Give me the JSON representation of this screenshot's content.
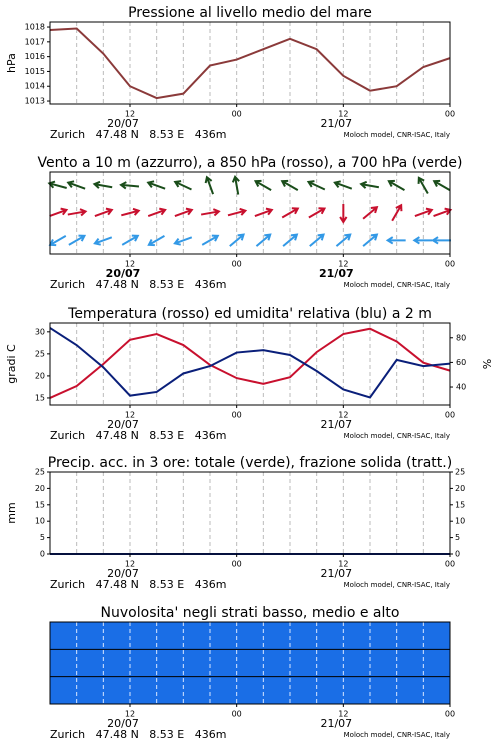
{
  "chart_data": [
    {
      "type": "line",
      "title": "Pressione al livello medio del mare",
      "ylabel": "hPa",
      "categories": [
        null,
        null,
        null,
        "12",
        null,
        null,
        null,
        "00",
        null,
        null,
        null,
        "12",
        null,
        null,
        null,
        "00"
      ],
      "date_labels": [
        null,
        null,
        null,
        "20/07",
        null,
        null,
        null,
        null,
        null,
        null,
        null,
        "21/07",
        null,
        null,
        null,
        null
      ],
      "location": "Zurich   47.48 N   8.53 E   436m",
      "credit": "Moloch model, CNR-ISAC, Italy",
      "ylim": [
        1012.8,
        1018.34
      ],
      "yticks": [
        1013,
        1014,
        1015,
        1016,
        1017,
        1018
      ],
      "grid": true,
      "series": [
        {
          "color": "#8b3a3a",
          "values": [
            1017.8,
            1017.9,
            1016.2,
            1014.0,
            1013.2,
            1013.5,
            1015.4,
            1015.8,
            1016.5,
            1017.2,
            1016.5,
            1014.7,
            1013.7,
            1014.0,
            1015.3,
            1015.9
          ]
        }
      ]
    },
    {
      "type": "quiver",
      "title": "Vento a 10 m (azzurro), a 850 hPa (rosso), a 700 hPa (verde)",
      "categories": [
        null,
        null,
        null,
        "12",
        null,
        null,
        null,
        "00",
        null,
        null,
        null,
        "12",
        null,
        null,
        null,
        "00"
      ],
      "date_labels": [
        null,
        null,
        null,
        "20/07",
        null,
        null,
        null,
        null,
        null,
        null,
        null,
        "21/07",
        null,
        null,
        null,
        null
      ],
      "date_bold": true,
      "location": "Zurich   47.48 N   8.53 E   436m",
      "credit": "Moloch model, CNR-ISAC, Italy",
      "grid": true,
      "series": [
        {
          "color": "#3399e6",
          "values": [
            210,
            30,
            200,
            30,
            210,
            200,
            30,
            40,
            40,
            40,
            40,
            40,
            40,
            180,
            180,
            180
          ]
        },
        {
          "color": "#c8102e",
          "values": [
            20,
            10,
            20,
            15,
            20,
            20,
            10,
            15,
            20,
            30,
            30,
            270,
            40,
            60,
            20,
            20
          ]
        },
        {
          "color": "#1a4d1a",
          "values": [
            165,
            160,
            170,
            175,
            160,
            155,
            110,
            100,
            150,
            150,
            155,
            160,
            170,
            150,
            120,
            150
          ]
        }
      ]
    },
    {
      "type": "line",
      "title": "Temperatura (rosso) ed umidita' relativa (blu) a 2 m",
      "ylabel": "gradi C",
      "y2label": "%",
      "categories": [
        null,
        null,
        null,
        "12",
        null,
        null,
        null,
        "00",
        null,
        null,
        null,
        "12",
        null,
        null,
        null,
        "00"
      ],
      "date_labels": [
        null,
        null,
        null,
        "20/07",
        null,
        null,
        null,
        null,
        null,
        null,
        null,
        "21/07",
        null,
        null,
        null,
        null
      ],
      "location": "Zurich   47.48 N   8.53 E   436m",
      "credit": "Moloch model, CNR-ISAC, Italy",
      "ylim": [
        13.4,
        32.0
      ],
      "yticks": [
        15,
        20,
        25,
        30
      ],
      "y2lim": [
        25.4,
        92
      ],
      "y2ticks": [
        40,
        60,
        80
      ],
      "grid": true,
      "series": [
        {
          "color": "#c8102e",
          "values": [
            15.0,
            17.7,
            22.7,
            28.2,
            29.5,
            27.0,
            22.5,
            19.5,
            18.2,
            19.7,
            25.4,
            29.5,
            30.7,
            27.8,
            23.0,
            21.2
          ]
        },
        {
          "color": "#0a1f7a",
          "axis": "y2",
          "values": [
            88,
            74,
            56,
            33,
            36,
            51,
            57,
            68,
            70,
            66,
            53,
            38,
            31.5,
            62,
            57,
            59
          ]
        }
      ]
    },
    {
      "type": "line",
      "title": "Precip. acc. in 3 ore: totale (verde), frazione solida (tratt.)",
      "ylabel": "mm",
      "categories": [
        null,
        null,
        null,
        "12",
        null,
        null,
        null,
        "00",
        null,
        null,
        null,
        "12",
        null,
        null,
        null,
        "00"
      ],
      "date_labels": [
        null,
        null,
        null,
        "20/07",
        null,
        null,
        null,
        null,
        null,
        null,
        null,
        "21/07",
        null,
        null,
        null,
        null
      ],
      "location": "Zurich   47.48 N   8.53 E   436m",
      "credit": "Moloch model, CNR-ISAC, Italy",
      "ylim": [
        0,
        25
      ],
      "yticks": [
        0,
        5,
        10,
        15,
        20,
        25
      ],
      "mirror_yticks": true,
      "grid": true,
      "series": [
        {
          "color": "#0a1f7a",
          "values": [
            0,
            0,
            0,
            0,
            0,
            0,
            0,
            0,
            0,
            0,
            0,
            0,
            0,
            0,
            0,
            0
          ]
        }
      ]
    },
    {
      "type": "heatmap",
      "title": "Nuvolosita' negli strati basso, medio e alto",
      "categories": [
        null,
        null,
        null,
        "12",
        null,
        null,
        null,
        "00",
        null,
        null,
        null,
        "12",
        null,
        null,
        null,
        "00"
      ],
      "date_labels": [
        null,
        null,
        null,
        "20/07",
        null,
        null,
        null,
        null,
        null,
        null,
        null,
        "21/07",
        null,
        null,
        null,
        null
      ],
      "location": "Zurich   47.48 N   8.53 E   436m",
      "credit": "Moloch model, CNR-ISAC, Italy",
      "grid": true,
      "color": "#1a6ee6",
      "layers": [
        [
          100,
          100,
          100,
          100,
          100,
          100,
          100,
          100,
          100,
          100,
          100,
          100,
          100,
          100,
          100,
          100
        ],
        [
          100,
          100,
          100,
          100,
          100,
          100,
          100,
          100,
          100,
          100,
          100,
          100,
          100,
          100,
          100,
          100
        ],
        [
          100,
          100,
          100,
          100,
          100,
          100,
          100,
          100,
          100,
          100,
          100,
          100,
          100,
          100,
          100,
          100
        ]
      ]
    }
  ]
}
